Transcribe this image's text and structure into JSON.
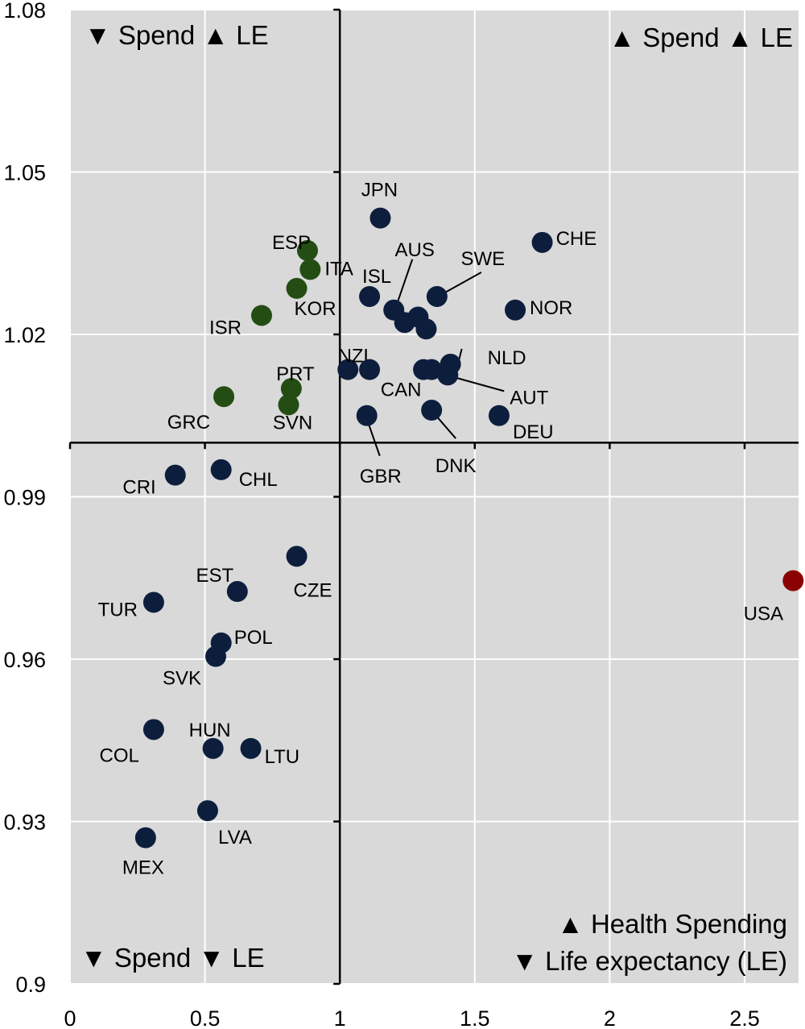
{
  "chart_data": {
    "type": "scatter",
    "title": "",
    "xlabel": "",
    "ylabel": "",
    "xlim": [
      0,
      2.7
    ],
    "ylim": [
      0.9,
      1.08
    ],
    "x_ticks": [
      "0",
      "0.5",
      "1",
      "1.5",
      "2",
      "2.5"
    ],
    "y_ticks": [
      "0.9",
      "0.93",
      "0.96",
      "0.99",
      "1.02",
      "1.05",
      "1.08"
    ],
    "grid": true,
    "cross_at": {
      "x": 1,
      "y": 1
    },
    "quadrant_labels": {
      "top_left": "▼ Spend ▲ LE",
      "top_right": "▲ Spend ▲ LE",
      "bottom_left": "▼ Spend ▼ LE"
    },
    "legend": [
      "▲ Health Spending",
      "▼ Life expectancy (LE)"
    ],
    "colors": {
      "dark_blue": "#0d1e3d",
      "green": "#244d14",
      "red": "#8b0000",
      "background": "#d9d9d9"
    },
    "points": [
      {
        "label": "JPN",
        "x": 1.15,
        "y": 1.0415,
        "color": "dark_blue"
      },
      {
        "label": "CHE",
        "x": 1.75,
        "y": 1.037,
        "color": "dark_blue"
      },
      {
        "label": "ESP",
        "x": 0.88,
        "y": 1.0355,
        "color": "green"
      },
      {
        "label": "ITA",
        "x": 0.89,
        "y": 1.032,
        "color": "green"
      },
      {
        "label": "KOR",
        "x": 0.84,
        "y": 1.0285,
        "color": "green"
      },
      {
        "label": "ISR",
        "x": 0.71,
        "y": 1.0235,
        "color": "green"
      },
      {
        "label": "ISL",
        "x": 1.11,
        "y": 1.027,
        "color": "dark_blue"
      },
      {
        "label": "AUS",
        "x": 1.2,
        "y": 1.0245,
        "color": "dark_blue"
      },
      {
        "label": "",
        "x": 1.24,
        "y": 1.0222,
        "color": "dark_blue"
      },
      {
        "label": "",
        "x": 1.29,
        "y": 1.0232,
        "color": "dark_blue"
      },
      {
        "label": "",
        "x": 1.32,
        "y": 1.021,
        "color": "dark_blue"
      },
      {
        "label": "SWE",
        "x": 1.36,
        "y": 1.027,
        "color": "dark_blue"
      },
      {
        "label": "NOR",
        "x": 1.65,
        "y": 1.0245,
        "color": "dark_blue"
      },
      {
        "label": "NZL",
        "x": 1.03,
        "y": 1.0135,
        "color": "dark_blue"
      },
      {
        "label": "",
        "x": 1.11,
        "y": 1.0135,
        "color": "dark_blue"
      },
      {
        "label": "CAN",
        "x": 1.31,
        "y": 1.0135,
        "color": "dark_blue"
      },
      {
        "label": "",
        "x": 1.34,
        "y": 1.0135,
        "color": "dark_blue"
      },
      {
        "label": "NLD",
        "x": 1.41,
        "y": 1.0145,
        "color": "dark_blue"
      },
      {
        "label": "AUT",
        "x": 1.4,
        "y": 1.0125,
        "color": "dark_blue"
      },
      {
        "label": "DNK",
        "x": 1.34,
        "y": 1.006,
        "color": "dark_blue"
      },
      {
        "label": "DEU",
        "x": 1.59,
        "y": 1.005,
        "color": "dark_blue"
      },
      {
        "label": "GBR",
        "x": 1.1,
        "y": 1.005,
        "color": "dark_blue"
      },
      {
        "label": "PRT",
        "x": 0.82,
        "y": 1.01,
        "color": "green"
      },
      {
        "label": "SVN",
        "x": 0.81,
        "y": 1.007,
        "color": "green"
      },
      {
        "label": "GRC",
        "x": 0.57,
        "y": 1.0085,
        "color": "green"
      },
      {
        "label": "CRI",
        "x": 0.39,
        "y": 0.994,
        "color": "dark_blue"
      },
      {
        "label": "CHL",
        "x": 0.56,
        "y": 0.995,
        "color": "dark_blue"
      },
      {
        "label": "CZE",
        "x": 0.84,
        "y": 0.979,
        "color": "dark_blue"
      },
      {
        "label": "EST",
        "x": 0.62,
        "y": 0.9725,
        "color": "dark_blue"
      },
      {
        "label": "TUR",
        "x": 0.31,
        "y": 0.9705,
        "color": "dark_blue"
      },
      {
        "label": "POL",
        "x": 0.56,
        "y": 0.963,
        "color": "dark_blue"
      },
      {
        "label": "SVK",
        "x": 0.54,
        "y": 0.9605,
        "color": "dark_blue"
      },
      {
        "label": "COL",
        "x": 0.31,
        "y": 0.947,
        "color": "dark_blue"
      },
      {
        "label": "HUN",
        "x": 0.53,
        "y": 0.9435,
        "color": "dark_blue"
      },
      {
        "label": "LTU",
        "x": 0.67,
        "y": 0.9435,
        "color": "dark_blue"
      },
      {
        "label": "LVA",
        "x": 0.51,
        "y": 0.932,
        "color": "dark_blue"
      },
      {
        "label": "MEX",
        "x": 0.28,
        "y": 0.927,
        "color": "dark_blue"
      },
      {
        "label": "USA",
        "x": 2.68,
        "y": 0.9745,
        "color": "red"
      }
    ]
  }
}
